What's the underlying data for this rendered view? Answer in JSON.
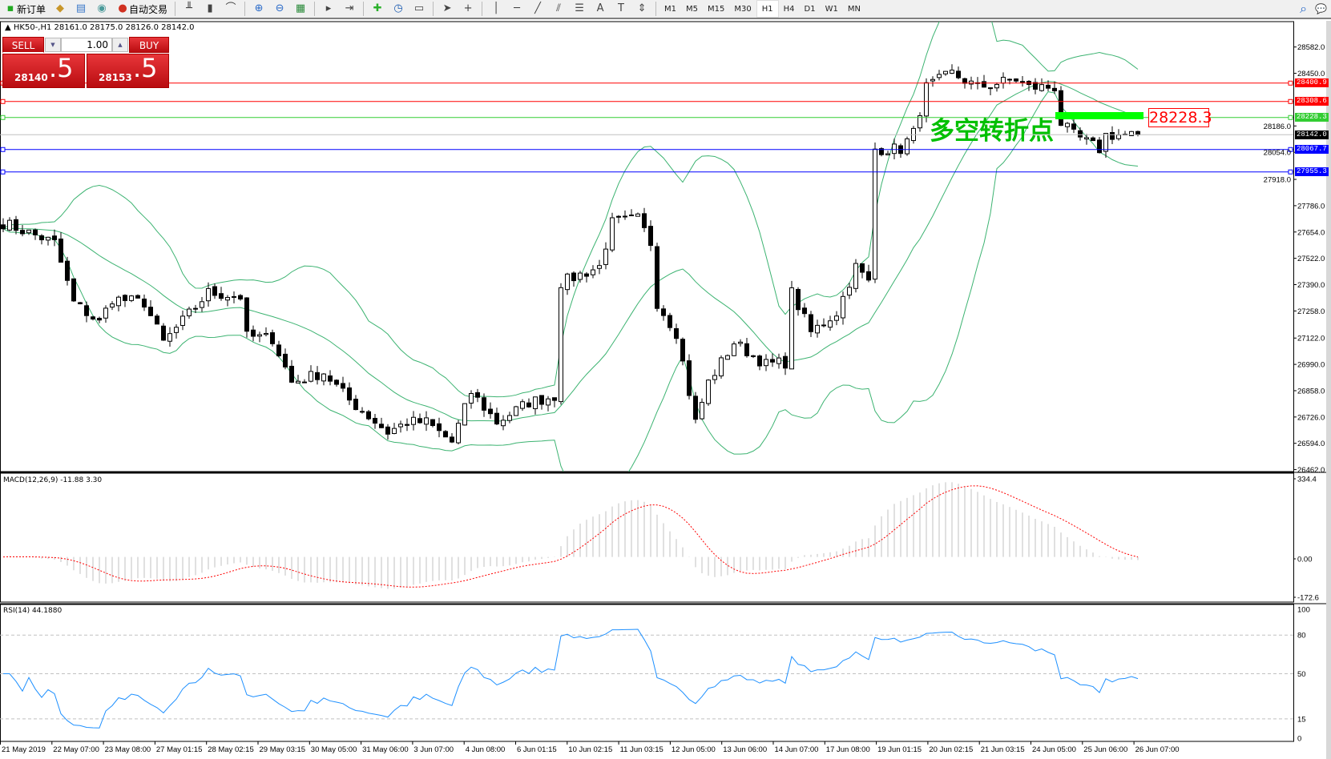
{
  "toolbar": {
    "items": [
      {
        "label": "新订单",
        "icon": "new-order-icon"
      },
      {
        "label": "",
        "icon": "history-center-icon"
      },
      {
        "label": "",
        "icon": "market-watch-icon"
      },
      {
        "label": "",
        "icon": "signals-icon"
      },
      {
        "label": "自动交易",
        "icon": "autotrading-icon"
      }
    ],
    "tools": [
      "bar-chart-icon",
      "candlestick-icon",
      "line-chart-icon",
      "zoom-in-icon",
      "zoom-out-icon",
      "tile-windows-icon",
      "auto-scroll-icon",
      "chart-shift-icon",
      "indicators-icon",
      "periods-icon",
      "templates-icon",
      "cursor-icon",
      "crosshair-icon",
      "vertical-line-icon",
      "horizontal-line-icon",
      "trendline-icon",
      "equidistant-channel-icon",
      "fibonacci-icon",
      "text-icon",
      "text-label-icon",
      "arrows-icon"
    ],
    "timeframes": [
      "M1",
      "M5",
      "M15",
      "M30",
      "H1",
      "H4",
      "D1",
      "W1",
      "MN"
    ],
    "active_timeframe": "H1"
  },
  "chart": {
    "header": "HK50-,H1  28161.0 28175.0 28126.0 28142.0",
    "trade_panel": {
      "sell": "SELL",
      "buy": "BUY",
      "lot": "1.00",
      "sell_price_main": "28140",
      "sell_price_big": ".5",
      "buy_price_main": "28153",
      "buy_price_big": ".5"
    },
    "annotation_text": "多空转折点",
    "annotation_color": "#00c000",
    "annotation_price_label": "28228.3",
    "price_ticks": [
      28582.0,
      28450.0,
      28186.0,
      28054.0,
      27918.0,
      27786.0,
      27654.0,
      27522.0,
      27390.0,
      27258.0,
      27122.0,
      26990.0,
      26858.0,
      26726.0,
      26594.0,
      26462.0
    ],
    "hlines": [
      {
        "price": 28400.9,
        "label": "28400.9",
        "color": "#ff0000"
      },
      {
        "price": 28308.6,
        "label": "28308.6",
        "color": "#ff0000"
      },
      {
        "price": 28228.3,
        "label": "28228.3",
        "color": "#32cd32"
      },
      {
        "price": 28142.0,
        "label": "28142.0",
        "color": "#000000",
        "line": "#c0c0c0"
      },
      {
        "price": 28067.7,
        "label": "28067.7",
        "color": "#0000ff"
      },
      {
        "price": 27955.3,
        "label": "27955.3",
        "color": "#0000ff"
      }
    ],
    "close_path_by_bar": [
      [
        0,
        27700
      ],
      [
        4,
        27650
      ],
      [
        8,
        27600
      ],
      [
        11,
        27300
      ],
      [
        15,
        27200
      ],
      [
        17,
        27320
      ],
      [
        22,
        27300
      ],
      [
        25,
        27100
      ],
      [
        32,
        27350
      ],
      [
        37,
        27330
      ],
      [
        38,
        27130
      ],
      [
        42,
        27120
      ],
      [
        45,
        26900
      ],
      [
        50,
        26950
      ],
      [
        54,
        26810
      ],
      [
        60,
        26650
      ],
      [
        63,
        26700
      ],
      [
        66,
        26700
      ],
      [
        70,
        26600
      ],
      [
        73,
        26850
      ],
      [
        77,
        26700
      ],
      [
        82,
        26800
      ],
      [
        86,
        26830
      ],
      [
        87,
        27400
      ],
      [
        93,
        27480
      ],
      [
        95,
        27700
      ],
      [
        99,
        27720
      ],
      [
        101,
        27600
      ],
      [
        102,
        27300
      ],
      [
        105,
        27150
      ],
      [
        108,
        26700
      ],
      [
        110,
        26900
      ],
      [
        114,
        27100
      ],
      [
        119,
        26990
      ],
      [
        122,
        27000
      ],
      [
        123,
        27350
      ],
      [
        126,
        27150
      ],
      [
        130,
        27250
      ],
      [
        133,
        27480
      ],
      [
        135,
        27400
      ],
      [
        136,
        28070
      ],
      [
        140,
        28070
      ],
      [
        142,
        28150
      ],
      [
        144,
        28380
      ],
      [
        148,
        28450
      ],
      [
        152,
        28380
      ],
      [
        158,
        28420
      ],
      [
        160,
        28380
      ],
      [
        164,
        28380
      ],
      [
        165,
        28200
      ],
      [
        167,
        28140
      ],
      [
        171,
        28070
      ],
      [
        172,
        28140
      ],
      [
        177,
        28142
      ]
    ],
    "bollinger_color": "#3cb371",
    "time_labels": [
      "21 May 2019",
      "22 May 07:00",
      "23 May 08:00",
      "27 May 01:15",
      "28 May 02:15",
      "29 May 03:15",
      "30 May 05:00",
      "31 May 06:00",
      "3 Jun 07:00",
      "4 Jun 08:00",
      "6 Jun 01:15",
      "10 Jun 02:15",
      "11 Jun 03:15",
      "12 Jun 05:00",
      "13 Jun 06:00",
      "14 Jun 07:00",
      "17 Jun 08:00",
      "19 Jun 01:15",
      "20 Jun 02:15",
      "21 Jun 03:15",
      "24 Jun 05:00",
      "25 Jun 06:00",
      "26 Jun 07:00"
    ]
  },
  "macd": {
    "title": "MACD(12,26,9) -11.88 3.30",
    "ticks": [
      "334.4",
      "0.00",
      "-172.6"
    ],
    "range": [
      -172.6,
      334.4
    ],
    "hist_color": "#c0c0c0",
    "signal_color": "#ff0000"
  },
  "rsi": {
    "title": "RSI(14) 44.1880",
    "ticks": [
      "100",
      "80",
      "50",
      "15",
      "0"
    ],
    "levels": [
      80,
      50,
      15
    ],
    "color": "#1e90ff"
  }
}
